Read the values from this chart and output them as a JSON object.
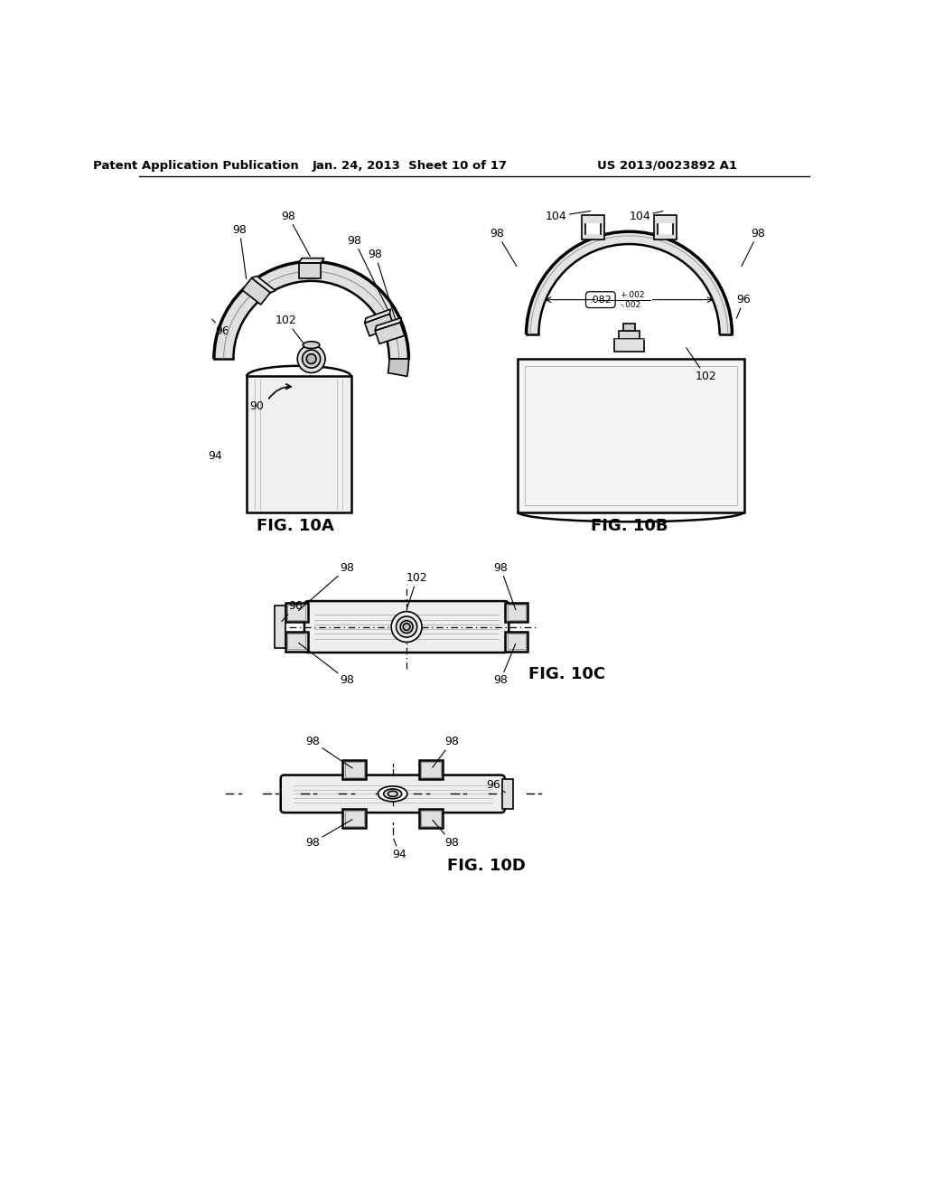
{
  "header_left": "Patent Application Publication",
  "header_center": "Jan. 24, 2013  Sheet 10 of 17",
  "header_right": "US 2013/0023892 A1",
  "fig_10a_label": "FIG. 10A",
  "fig_10b_label": "FIG. 10B",
  "fig_10c_label": "FIG. 10C",
  "fig_10d_label": "FIG. 10D",
  "bg_color": "#ffffff",
  "lc": "#000000",
  "gray1": "#e8e8e8",
  "gray2": "#d0d0d0",
  "gray3": "#b8b8b8"
}
